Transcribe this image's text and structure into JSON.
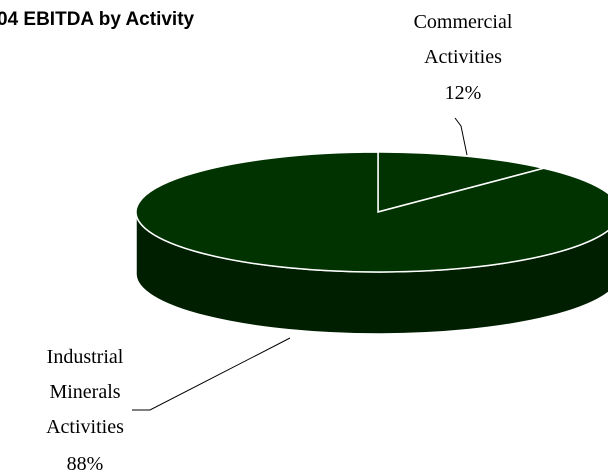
{
  "chart_data": {
    "type": "pie",
    "title": "04 EBITDA by Activity",
    "categories": [
      "Commercial Activities",
      "Industrial Minerals Activities"
    ],
    "values": [
      12,
      88
    ],
    "value_labels": [
      "12%",
      "88%"
    ],
    "colors": [
      "#003300",
      "#003300"
    ],
    "three_d": true
  }
}
